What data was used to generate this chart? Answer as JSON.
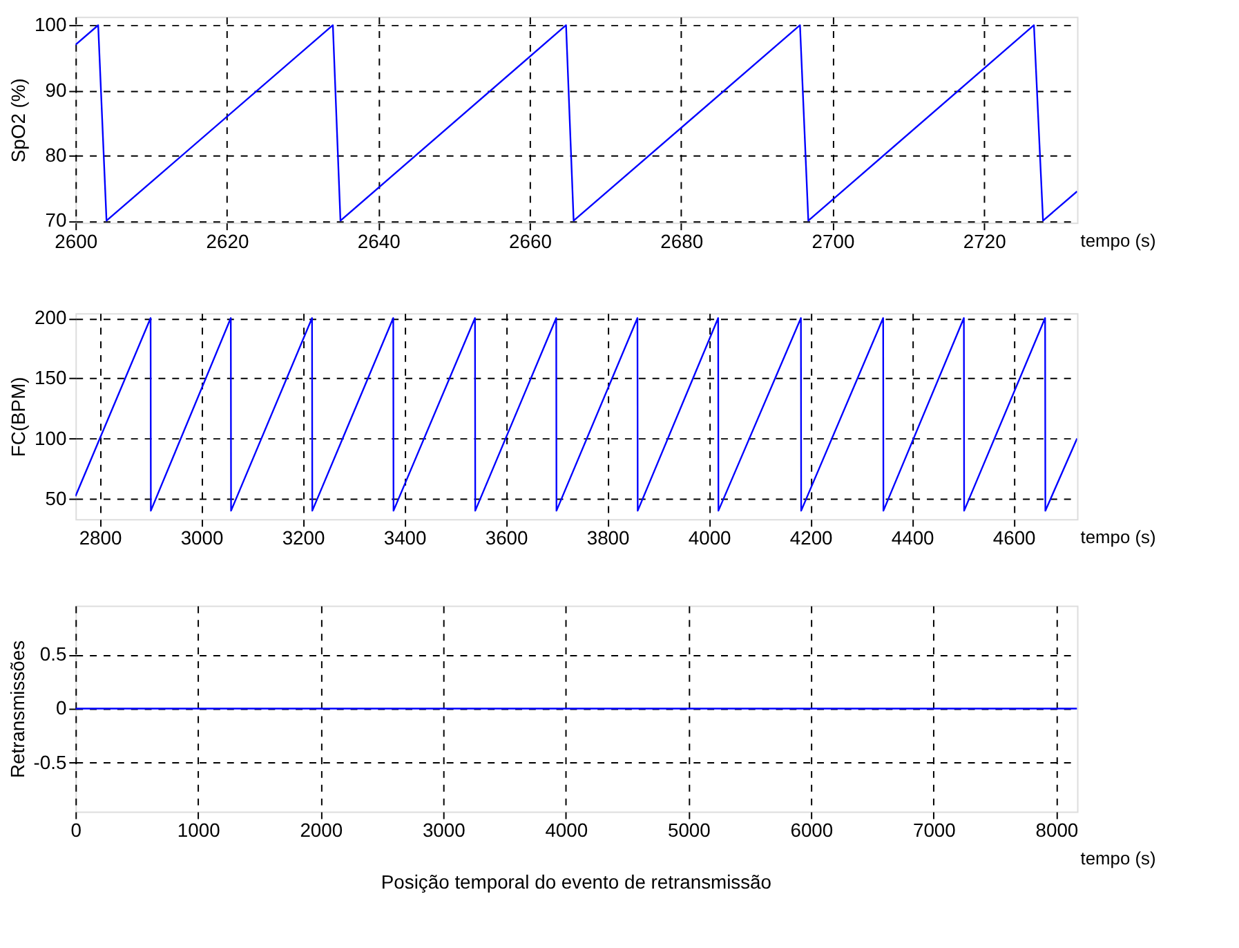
{
  "chart_data": [
    {
      "type": "line",
      "xlabel": "tempo (s)",
      "ylabel": "SpO2 (%)",
      "xlim": [
        2600,
        2732.3
      ],
      "ylim": [
        69.7,
        101.3
      ],
      "xticks": [
        2600,
        2620,
        2640,
        2660,
        2680,
        2700,
        2720
      ],
      "yticks": [
        70,
        80,
        90,
        100
      ],
      "grid": true,
      "series": [
        {
          "color": "#0000ff",
          "x": [
            2600,
            2603,
            2604.1,
            2634,
            2635,
            2664.8,
            2665.8,
            2695.7,
            2696.8,
            2726.6,
            2727.8,
            2732.3
          ],
          "values": [
            97,
            100,
            70,
            100,
            70,
            100,
            70,
            100,
            70,
            100,
            70,
            74.5
          ]
        }
      ]
    },
    {
      "type": "line",
      "xlabel": "tempo (s)",
      "ylabel": "FC(BPM)",
      "xlim": [
        2752,
        4725
      ],
      "ylim": [
        33,
        204
      ],
      "xticks": [
        2800,
        3000,
        3200,
        3400,
        3600,
        3800,
        4000,
        4200,
        4400,
        4600
      ],
      "yticks": [
        50,
        100,
        150,
        200
      ],
      "grid": true,
      "series": [
        {
          "color": "#0000ff",
          "x": [
            2752,
            2900,
            2900.5,
            3058,
            3058.5,
            3218,
            3218.5,
            3378,
            3378.5,
            3539,
            3539.5,
            3699,
            3699.5,
            3859,
            3859.5,
            4018,
            4018.5,
            4181,
            4181.5,
            4343,
            4343.5,
            4502,
            4502.5,
            4662,
            4662.5,
            4725
          ],
          "values": [
            52,
            200,
            40,
            200,
            40,
            200,
            40,
            200,
            40,
            200,
            40,
            200,
            40,
            200,
            40,
            200,
            40,
            200,
            40,
            200,
            40,
            200,
            40,
            200,
            40,
            100
          ]
        }
      ]
    },
    {
      "type": "line",
      "xlabel": "tempo (s)",
      "ylabel": "Retransmissões",
      "xlim": [
        0,
        8170
      ],
      "ylim": [
        -0.95,
        0.95
      ],
      "xticks": [
        0,
        1000,
        2000,
        3000,
        4000,
        5000,
        6000,
        7000,
        8000
      ],
      "yticks": [
        -0.5,
        0,
        0.5
      ],
      "grid": true,
      "annotations": [
        "Posição temporal do evento de retransmissão"
      ],
      "series": [
        {
          "color": "#0000ff",
          "x": [
            0,
            8170
          ],
          "values": [
            0,
            0
          ]
        }
      ]
    }
  ]
}
